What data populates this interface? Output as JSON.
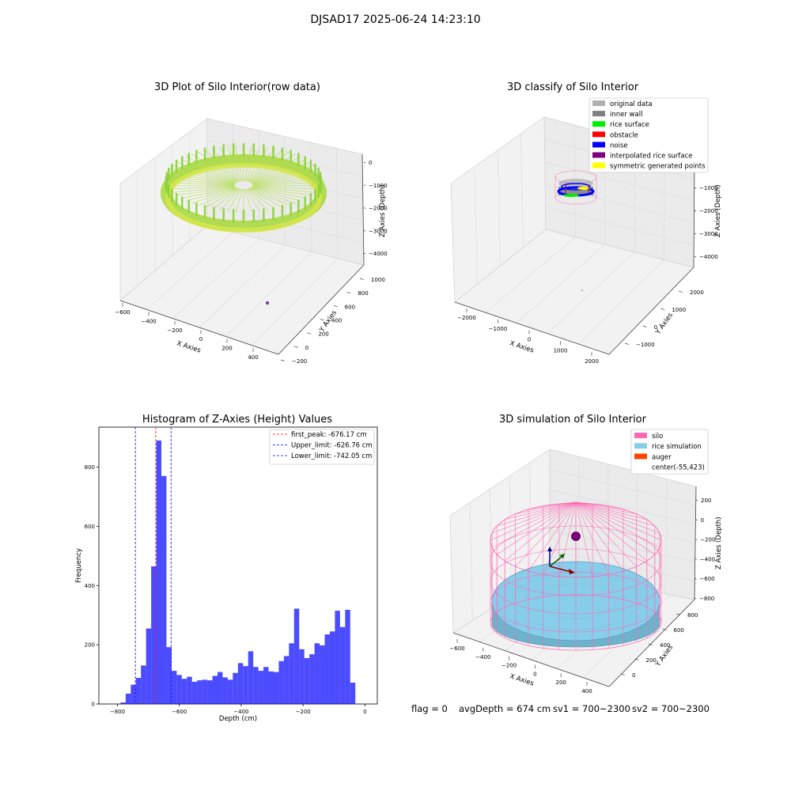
{
  "suptitle": "DJSAD17 2025-06-24 14:23:10",
  "panels": {
    "raw": {
      "title": "3D Plot of Silo Interior(row data)",
      "xlabel": "X Axies",
      "ylabel": "Y Axies",
      "zlabel": "Z Axies (Depth)",
      "xticks": [
        "−600",
        "−400",
        "−200",
        "0",
        "200",
        "400"
      ],
      "yticks": [
        "−200",
        "0",
        "200",
        "400",
        "600",
        "800",
        "1000"
      ],
      "zticks": [
        "0",
        "−1000",
        "−2000",
        "−3000",
        "−4000"
      ]
    },
    "classify": {
      "title": "3D classify of Silo Interior",
      "xlabel": "X Axies",
      "ylabel": "Y Axies",
      "zlabel": "Z Axies (Depth)",
      "xticks": [
        "−2000",
        "−1000",
        "0",
        "1000",
        "2000"
      ],
      "yticks": [
        "−1000",
        "0",
        "1000",
        "2000"
      ],
      "zticks": [
        "0",
        "−1000",
        "−2000",
        "−3000",
        "−4000"
      ],
      "legend": [
        {
          "label": "original data",
          "color": "#b0b0b0"
        },
        {
          "label": "inner wall",
          "color": "#808080"
        },
        {
          "label": "rice surface",
          "color": "#00ee00"
        },
        {
          "label": "obstacle",
          "color": "#ff0000"
        },
        {
          "label": "noise",
          "color": "#0000ff"
        },
        {
          "label": "interpolated rice surface",
          "color": "#800080"
        },
        {
          "label": "symmetric generated points",
          "color": "#ffff00"
        }
      ]
    },
    "simulation": {
      "title": "3D simulation of Silo Interior",
      "xlabel": "X Axies",
      "ylabel": "Y Axies",
      "zlabel": "Z Axies (Depth)",
      "xticks": [
        "−600",
        "−400",
        "−200",
        "0",
        "200",
        "400"
      ],
      "yticks": [
        "0",
        "200",
        "400",
        "600",
        "800"
      ],
      "zticks": [
        "200",
        "0",
        "−200",
        "−400",
        "−600",
        "−800"
      ],
      "legend": [
        {
          "label": "silo",
          "color": "#ff69b4"
        },
        {
          "label": "rice simulation",
          "color": "#87ceeb"
        },
        {
          "label": "auger",
          "color": "#ff4500"
        },
        {
          "label": "center(-55,423)",
          "color": ""
        }
      ]
    }
  },
  "chart_data": {
    "type": "bar",
    "title": "Histogram of Z-Axies (Height) Values",
    "xlabel": "Depth (cm)",
    "ylabel": "Frequency",
    "xlim": [
      -860,
      40
    ],
    "ylim": [
      0,
      935
    ],
    "xticks": [
      -800,
      -600,
      -400,
      -200,
      0
    ],
    "yticks": [
      0,
      200,
      400,
      600,
      800
    ],
    "bar_start": -790,
    "bin_width": 16.5,
    "color": "#0000ff",
    "values": [
      5,
      35,
      65,
      88,
      130,
      255,
      465,
      890,
      770,
      192,
      112,
      98,
      85,
      92,
      75,
      80,
      82,
      80,
      95,
      108,
      90,
      82,
      105,
      138,
      128,
      178,
      125,
      112,
      125,
      110,
      108,
      145,
      162,
      205,
      322,
      185,
      155,
      168,
      205,
      198,
      235,
      245,
      315,
      260,
      318,
      72
    ],
    "lines": [
      {
        "label": "first_peak: -676.17 cm",
        "x": -676.17,
        "color": "#ff0000"
      },
      {
        "label": "Upper_limit: -626.76 cm",
        "x": -626.76,
        "color": "#0000ff"
      },
      {
        "label": "Lower_limit: -742.05 cm",
        "x": -742.05,
        "color": "#0000ff"
      }
    ]
  },
  "status": {
    "flag": "flag = 0",
    "avg": "avgDepth = 674 cm",
    "sv1": "sv1 = 700~2300",
    "sv2": "sv2 = 700~2300"
  }
}
